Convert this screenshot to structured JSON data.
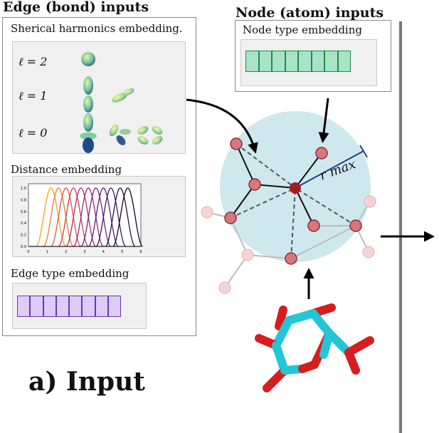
{
  "edge_section": {
    "title": "Edge (bond) inputs",
    "spherical_harmonics_label": "Sherical harmonics embedding.",
    "harmonics_rows": [
      {
        "label": "ℓ = 2"
      },
      {
        "label": "ℓ = 1"
      },
      {
        "label": "ℓ = 0"
      }
    ],
    "distance_label": "Distance embedding",
    "distance_chart": {
      "y_ticks": [
        "0.0",
        "0.2",
        "0.4",
        "0.6",
        "0.8",
        "1.0"
      ],
      "x_ticks": [
        "0",
        "1",
        "2",
        "3",
        "4",
        "5",
        "6"
      ],
      "centers": [
        1.2,
        1.6,
        2.0,
        2.4,
        2.8,
        3.2,
        3.6,
        4.0,
        4.4,
        4.9,
        5.3
      ],
      "colors": [
        "#f7a21b",
        "#f07a2a",
        "#e2533f",
        "#cc3a54",
        "#b52b67",
        "#9a2572",
        "#7b1f79",
        "#5b1b73",
        "#3d1763",
        "#24124a",
        "#0a0a14"
      ]
    },
    "edge_type_label": "Edge type embedding",
    "edge_type_cells": 8
  },
  "node_section": {
    "title": "Node (atom) inputs",
    "node_type_label": "Node type embedding",
    "node_type_cells": 8
  },
  "cutoff_label": "r max",
  "caption": "a) Input",
  "colors": {
    "node_fill": "#d9777f",
    "center_fill": "#a31c24",
    "cutoff_sphere": "#cfe8ee",
    "molecule_carbon": "#22c6d7",
    "molecule_oxygen": "#d71d1d"
  }
}
